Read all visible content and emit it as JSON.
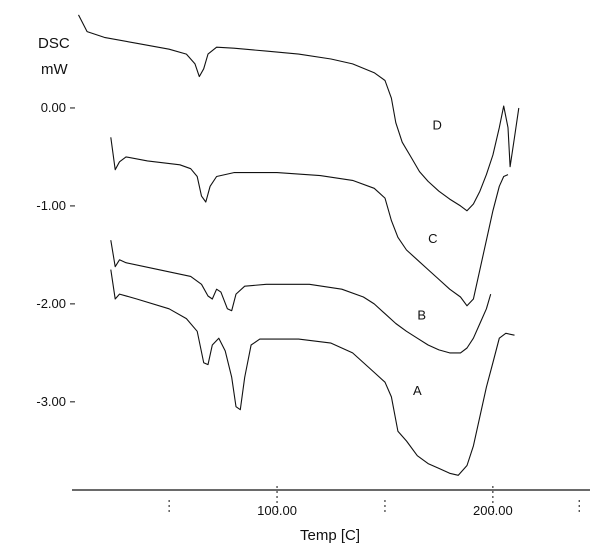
{
  "chart_data": {
    "type": "line",
    "title": "",
    "ylabel_line1": "DSC",
    "ylabel_line2": "mW",
    "xlabel": "Temp [C]",
    "xlim": [
      5,
      245
    ],
    "ylim": [
      -3.9,
      1.0
    ],
    "x_ticks": [
      {
        "value": 100,
        "label": "100.00"
      },
      {
        "value": 200,
        "label": "200.00"
      }
    ],
    "y_ticks": [
      {
        "value": 0,
        "label": "0.00"
      },
      {
        "value": -1,
        "label": "-1.00"
      },
      {
        "value": -2,
        "label": "-2.00"
      },
      {
        "value": -3,
        "label": "-3.00"
      }
    ],
    "grid": false,
    "series": [
      {
        "name": "D",
        "label_at": {
          "x": 172,
          "y": -0.22
        },
        "points": [
          [
            8,
            0.95
          ],
          [
            12,
            0.78
          ],
          [
            20,
            0.72
          ],
          [
            35,
            0.66
          ],
          [
            50,
            0.6
          ],
          [
            58,
            0.55
          ],
          [
            62,
            0.45
          ],
          [
            64,
            0.32
          ],
          [
            66,
            0.4
          ],
          [
            68,
            0.55
          ],
          [
            72,
            0.62
          ],
          [
            80,
            0.61
          ],
          [
            95,
            0.58
          ],
          [
            110,
            0.55
          ],
          [
            125,
            0.5
          ],
          [
            135,
            0.45
          ],
          [
            145,
            0.36
          ],
          [
            150,
            0.28
          ],
          [
            153,
            0.1
          ],
          [
            155,
            -0.15
          ],
          [
            158,
            -0.35
          ],
          [
            162,
            -0.5
          ],
          [
            166,
            -0.65
          ],
          [
            170,
            -0.75
          ],
          [
            175,
            -0.85
          ],
          [
            180,
            -0.93
          ],
          [
            185,
            -1.0
          ],
          [
            188,
            -1.05
          ],
          [
            191,
            -0.98
          ],
          [
            194,
            -0.85
          ],
          [
            197,
            -0.68
          ],
          [
            200,
            -0.48
          ],
          [
            203,
            -0.2
          ],
          [
            205,
            0.02
          ],
          [
            207,
            -0.2
          ],
          [
            208,
            -0.6
          ],
          [
            210,
            -0.3
          ],
          [
            212,
            0.0
          ]
        ]
      },
      {
        "name": "C",
        "label_at": {
          "x": 170,
          "y": -1.38
        },
        "points": [
          [
            23,
            -0.3
          ],
          [
            25,
            -0.63
          ],
          [
            27,
            -0.55
          ],
          [
            30,
            -0.5
          ],
          [
            40,
            -0.54
          ],
          [
            55,
            -0.58
          ],
          [
            60,
            -0.62
          ],
          [
            63,
            -0.7
          ],
          [
            65,
            -0.9
          ],
          [
            67,
            -0.96
          ],
          [
            69,
            -0.8
          ],
          [
            72,
            -0.7
          ],
          [
            80,
            -0.66
          ],
          [
            100,
            -0.66
          ],
          [
            120,
            -0.69
          ],
          [
            135,
            -0.74
          ],
          [
            145,
            -0.82
          ],
          [
            150,
            -0.92
          ],
          [
            153,
            -1.15
          ],
          [
            156,
            -1.32
          ],
          [
            160,
            -1.45
          ],
          [
            165,
            -1.55
          ],
          [
            170,
            -1.65
          ],
          [
            175,
            -1.75
          ],
          [
            180,
            -1.85
          ],
          [
            185,
            -1.93
          ],
          [
            188,
            -2.02
          ],
          [
            191,
            -1.95
          ],
          [
            194,
            -1.65
          ],
          [
            197,
            -1.35
          ],
          [
            200,
            -1.05
          ],
          [
            203,
            -0.8
          ],
          [
            205,
            -0.7
          ],
          [
            207,
            -0.68
          ]
        ]
      },
      {
        "name": "B",
        "label_at": {
          "x": 165,
          "y": -2.16
        },
        "points": [
          [
            23,
            -1.35
          ],
          [
            25,
            -1.62
          ],
          [
            27,
            -1.55
          ],
          [
            30,
            -1.58
          ],
          [
            45,
            -1.65
          ],
          [
            60,
            -1.72
          ],
          [
            65,
            -1.8
          ],
          [
            68,
            -1.92
          ],
          [
            70,
            -1.95
          ],
          [
            72,
            -1.85
          ],
          [
            74,
            -1.88
          ],
          [
            77,
            -2.05
          ],
          [
            79,
            -2.07
          ],
          [
            81,
            -1.9
          ],
          [
            85,
            -1.82
          ],
          [
            95,
            -1.8
          ],
          [
            115,
            -1.8
          ],
          [
            130,
            -1.85
          ],
          [
            140,
            -1.93
          ],
          [
            145,
            -2.0
          ],
          [
            150,
            -2.1
          ],
          [
            155,
            -2.2
          ],
          [
            160,
            -2.28
          ],
          [
            165,
            -2.35
          ],
          [
            170,
            -2.42
          ],
          [
            175,
            -2.47
          ],
          [
            180,
            -2.5
          ],
          [
            185,
            -2.5
          ],
          [
            188,
            -2.45
          ],
          [
            191,
            -2.35
          ],
          [
            194,
            -2.2
          ],
          [
            197,
            -2.05
          ],
          [
            199,
            -1.9
          ]
        ]
      },
      {
        "name": "A",
        "label_at": {
          "x": 163,
          "y": -2.93
        },
        "points": [
          [
            23,
            -1.65
          ],
          [
            25,
            -1.95
          ],
          [
            27,
            -1.9
          ],
          [
            35,
            -1.95
          ],
          [
            50,
            -2.05
          ],
          [
            58,
            -2.15
          ],
          [
            63,
            -2.28
          ],
          [
            66,
            -2.6
          ],
          [
            68,
            -2.62
          ],
          [
            70,
            -2.42
          ],
          [
            73,
            -2.35
          ],
          [
            76,
            -2.48
          ],
          [
            79,
            -2.75
          ],
          [
            81,
            -3.05
          ],
          [
            83,
            -3.08
          ],
          [
            85,
            -2.75
          ],
          [
            88,
            -2.42
          ],
          [
            92,
            -2.36
          ],
          [
            110,
            -2.36
          ],
          [
            125,
            -2.4
          ],
          [
            135,
            -2.5
          ],
          [
            145,
            -2.7
          ],
          [
            150,
            -2.8
          ],
          [
            153,
            -2.95
          ],
          [
            156,
            -3.3
          ],
          [
            160,
            -3.4
          ],
          [
            165,
            -3.55
          ],
          [
            170,
            -3.63
          ],
          [
            175,
            -3.68
          ],
          [
            180,
            -3.73
          ],
          [
            184,
            -3.75
          ],
          [
            188,
            -3.65
          ],
          [
            191,
            -3.45
          ],
          [
            194,
            -3.15
          ],
          [
            197,
            -2.85
          ],
          [
            200,
            -2.6
          ],
          [
            203,
            -2.35
          ],
          [
            206,
            -2.3
          ],
          [
            210,
            -2.32
          ]
        ]
      }
    ]
  }
}
